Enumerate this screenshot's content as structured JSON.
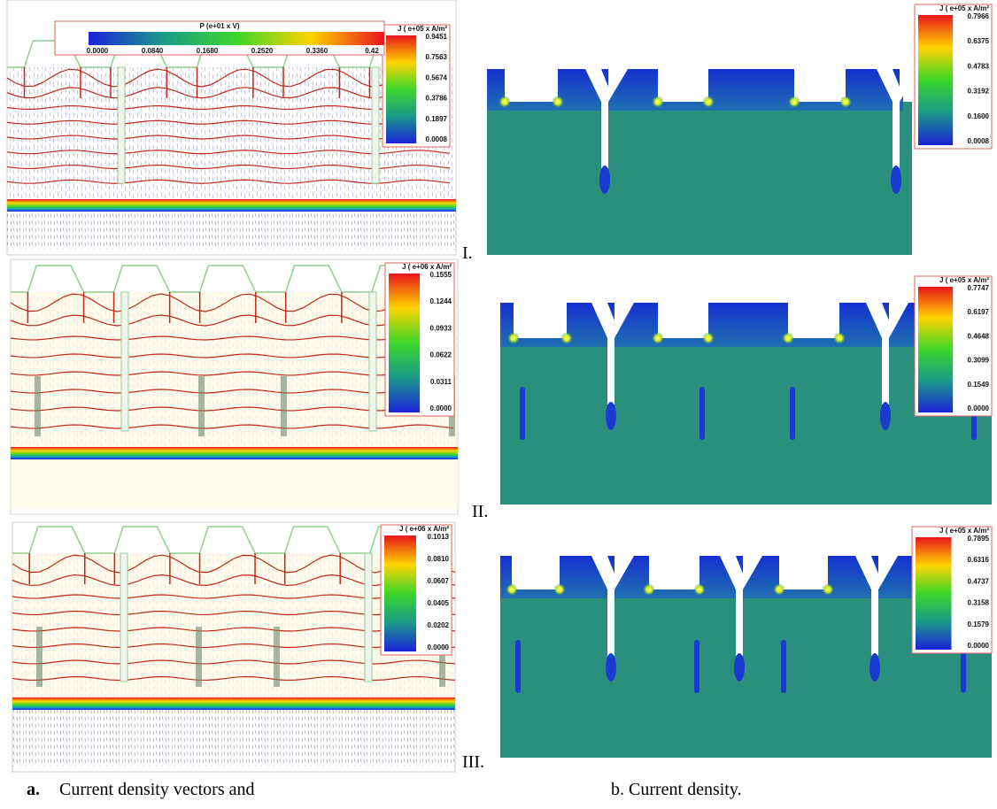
{
  "panels": [
    {
      "colorbar": {
        "label": "J ( e+05  x A/m²",
        "ticks": [
          "0.9451",
          "0.7563",
          "0.5674",
          "0.3786",
          "0.1897",
          "0.0008"
        ]
      },
      "potential_bar": {
        "label": "P (e+01 x V)",
        "ticks": [
          "0.0000",
          "0.0840",
          "0.1680",
          "0.2520",
          "0.3360",
          "0.42"
        ]
      }
    },
    {
      "colorbar": {
        "label": "J ( e+05  x A/m²",
        "ticks": [
          "0.7966",
          "0.6375",
          "0.4783",
          "0.3192",
          "0.1600",
          "0.0008"
        ]
      }
    },
    {
      "colorbar": {
        "label": "J ( e+06  x A/m²",
        "ticks": [
          "0.1555",
          "0.1244",
          "0.0933",
          "0.0622",
          "0.0311",
          "0.0000"
        ]
      }
    },
    {
      "colorbar": {
        "label": "J ( e+05  x A/m²",
        "ticks": [
          "0.7747",
          "0.6197",
          "0.4648",
          "0.3099",
          "0.1549",
          "0.0000"
        ]
      }
    },
    {
      "colorbar": {
        "label": "J ( e+06  x A/m²",
        "ticks": [
          "0.1013",
          "0.0810",
          "0.0607",
          "0.0405",
          "0.0202",
          "0.0000"
        ]
      }
    },
    {
      "colorbar": {
        "label": "J ( e+05  x A/m²",
        "ticks": [
          "0.7895",
          "0.6316",
          "0.4737",
          "0.3158",
          "0.1579",
          "0.0000"
        ]
      }
    }
  ],
  "row_labels": [
    "I.",
    "II.",
    "III."
  ],
  "captions": [
    {
      "label": "a.",
      "text": "Current density vectors and"
    },
    {
      "text": "b. Current density."
    }
  ]
}
